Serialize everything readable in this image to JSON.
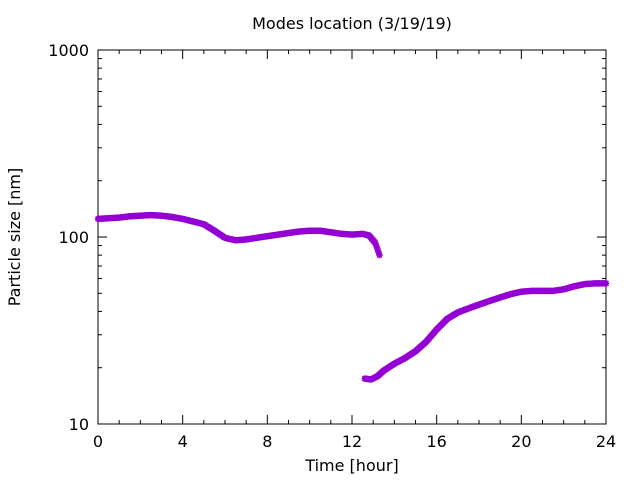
{
  "chart_data": {
    "type": "scatter",
    "title": "Modes location (3/19/19)",
    "xlabel": "Time [hour]",
    "ylabel": "Particle size [nm]",
    "xlim": [
      0,
      24
    ],
    "ylim": [
      10,
      1000
    ],
    "yscale": "log",
    "x_ticks": [
      0,
      4,
      8,
      12,
      16,
      20,
      24
    ],
    "x_tick_labels": [
      "0",
      "4",
      "8",
      "12",
      "16",
      "20",
      "24"
    ],
    "y_ticks": [
      10,
      100,
      1000
    ],
    "y_tick_labels": [
      "10",
      "100",
      "1000"
    ],
    "grid": false,
    "legend": "none",
    "marker_color": "#9400d3",
    "series": [
      {
        "x": [
          0,
          0.5,
          1,
          1.5,
          2,
          2.5,
          3,
          3.5,
          4,
          4.5,
          5,
          5.5,
          6,
          6.5,
          7,
          7.5,
          8,
          8.5,
          9,
          9.5,
          10,
          10.5,
          11,
          11.5,
          12,
          12.5,
          12.8,
          13.1,
          13.3
        ],
        "y": [
          125,
          126,
          127,
          129,
          130,
          131,
          130,
          128,
          125,
          121,
          117,
          108,
          99,
          96,
          97,
          99,
          101,
          103,
          105,
          107,
          108,
          108,
          106,
          104,
          103,
          104,
          102,
          93,
          80
        ]
      },
      {
        "x": [
          12.6,
          12.9,
          13.2,
          13.5,
          14,
          14.5,
          15,
          15.5,
          16,
          16.5,
          17,
          17.5,
          18,
          18.5,
          19,
          19.5,
          20,
          20.5,
          21,
          21.5,
          22,
          22.5,
          23,
          23.5,
          24
        ],
        "y": [
          17.5,
          17.3,
          18,
          19.3,
          21,
          22.5,
          24.5,
          27.5,
          32,
          36.5,
          39.5,
          41.5,
          43.5,
          45.5,
          47.5,
          49.5,
          51,
          51.5,
          51.5,
          51.5,
          52.5,
          54.5,
          56,
          56.5,
          56.5
        ]
      }
    ]
  }
}
